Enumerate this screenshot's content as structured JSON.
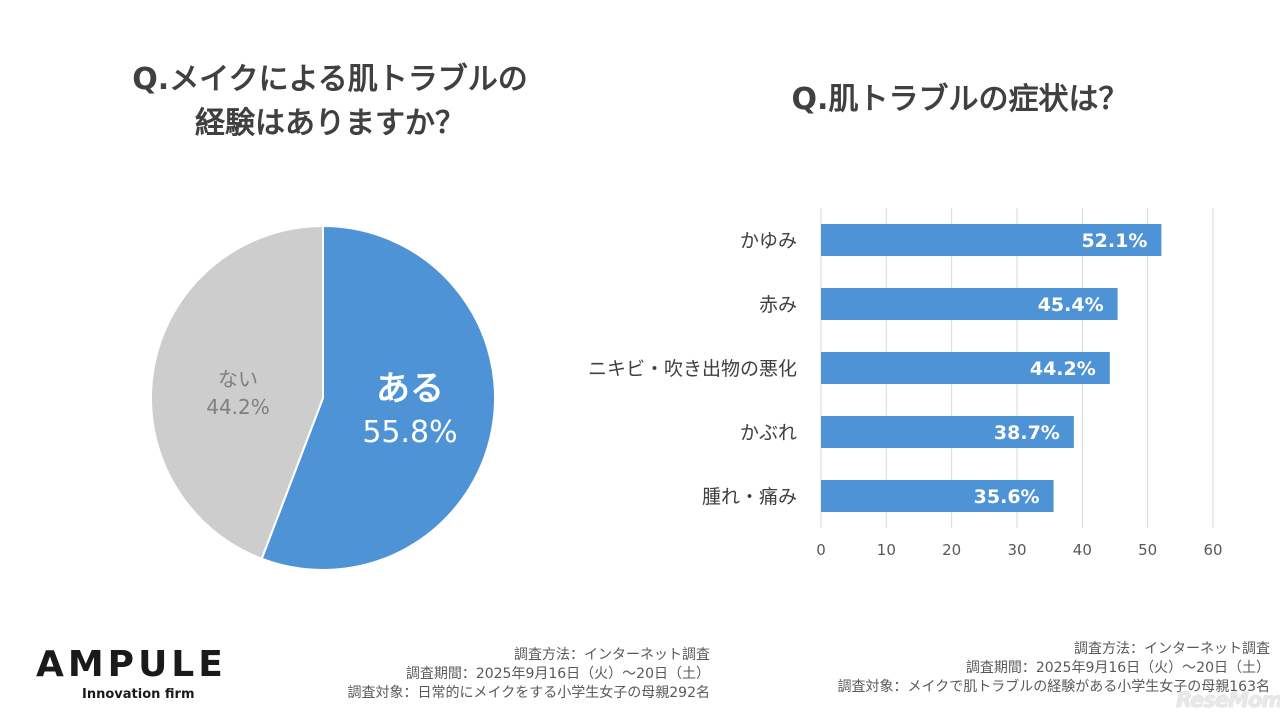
{
  "pie": {
    "title_line1": "Q.メイクによる肌トラブルの",
    "title_line2": "経験はありますか？",
    "slices": [
      {
        "label": "ある",
        "value": 55.8,
        "value_text": "55.8%",
        "color": "#4e93d6"
      },
      {
        "label": "ない",
        "value": 44.2,
        "value_text": "44.2%",
        "color": "#cdcdcd"
      }
    ]
  },
  "chart_data": [
    {
      "type": "pie",
      "title": "Q.メイクによる肌トラブルの経験はありますか？",
      "categories": [
        "ある",
        "ない"
      ],
      "values": [
        55.8,
        44.2
      ]
    },
    {
      "type": "bar",
      "orientation": "horizontal",
      "title": "Q.肌トラブルの症状は？",
      "categories": [
        "かゆみ",
        "赤み",
        "ニキビ・吹き出物の悪化",
        "かぶれ",
        "腫れ・痛み"
      ],
      "values": [
        52.1,
        45.4,
        44.2,
        38.7,
        35.6
      ],
      "value_labels": [
        "52.1%",
        "45.4%",
        "44.2%",
        "38.7%",
        "35.6%"
      ],
      "xlim": [
        0,
        60
      ],
      "xticks": [
        "0",
        "10",
        "20",
        "30",
        "40",
        "50",
        "60"
      ],
      "grid": true,
      "bar_color": "#4e93d6"
    }
  ],
  "notes_left": [
    "調査方法：インターネット調査",
    "調査期間：2025年9月16日（火）～20日（土）",
    "調査対象：日常的にメイクをする小学生女子の母親292名"
  ],
  "notes_right": [
    "調査方法：インターネット調査",
    "調査期間：2025年9月16日（火）～20日（土）",
    "調査対象：メイクで肌トラブルの経験がある小学生女子の母親163名"
  ],
  "logo": {
    "name": "AMPULE",
    "tagline": "Innovation firm"
  },
  "watermark": "ReseMom"
}
